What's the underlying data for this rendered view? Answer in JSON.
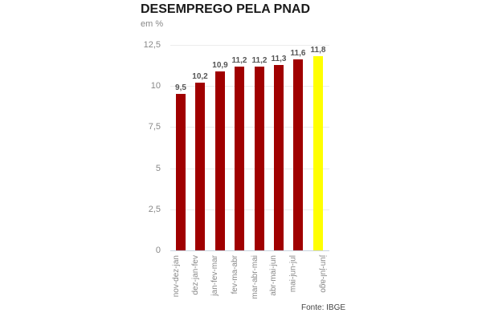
{
  "header": {
    "title": "DESEMPREGO PELA PNAD",
    "subtitle": "em %"
  },
  "footer": {
    "source": "Fonte: IBGE"
  },
  "colors": {
    "bar_default": "#a00000",
    "bar_highlight": "#ffff00",
    "gridline": "#ececec",
    "axis_line": "#c9d4e0"
  },
  "y_ticks": [
    "0",
    "2,5",
    "5",
    "7,5",
    "10",
    "12,5"
  ],
  "bars": [
    {
      "label": "nov-dez-jan",
      "value_label": "9,5"
    },
    {
      "label": "dez-jan-fev",
      "value_label": "10,2"
    },
    {
      "label": "jan-fev-mar",
      "value_label": "10,9"
    },
    {
      "label": "fev-ma-abr",
      "value_label": "11,2"
    },
    {
      "label": "mar-abr-mai",
      "value_label": "11,2"
    },
    {
      "label": "abr-mai-jun",
      "value_label": "11,3"
    },
    {
      "label": "mai-jun-jul",
      "value_label": "11,6"
    },
    {
      "label": "jun-jul-ago",
      "value_label": "11,8"
    }
  ],
  "chart_data": {
    "type": "bar",
    "title": "DESEMPREGO PELA PNAD",
    "subtitle": "em %",
    "categories": [
      "nov-dez-jan",
      "dez-jan-fev",
      "jan-fev-mar",
      "fev-ma-abr",
      "mar-abr-mai",
      "abr-mai-jun",
      "mai-jun-jul",
      "jun-jul-ago"
    ],
    "values": [
      9.5,
      10.2,
      10.9,
      11.2,
      11.2,
      11.3,
      11.6,
      11.8
    ],
    "data_labels": [
      "9,5",
      "10,2",
      "10,9",
      "11,2",
      "11,2",
      "11,3",
      "11,6",
      "11,8"
    ],
    "highlight_index": 7,
    "bar_colors": [
      "#a00000",
      "#a00000",
      "#a00000",
      "#a00000",
      "#a00000",
      "#a00000",
      "#a00000",
      "#ffff00"
    ],
    "xlabel": "",
    "ylabel": "em %",
    "ylim": [
      0,
      12.5
    ],
    "yticks": [
      0,
      2.5,
      5,
      7.5,
      10,
      12.5
    ],
    "grid": true,
    "legend": null,
    "annotations": [
      "Fonte: IBGE"
    ]
  }
}
